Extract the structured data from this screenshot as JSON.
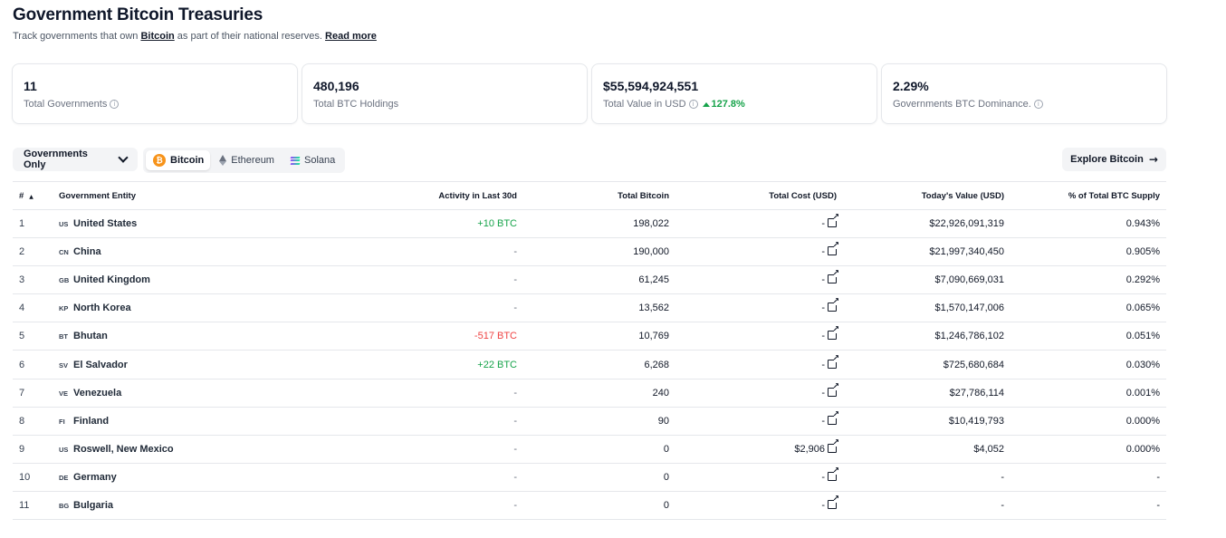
{
  "page": {
    "title": "Government Bitcoin Treasuries",
    "subtitle_prefix": "Track governments that own ",
    "subtitle_link": "Bitcoin",
    "subtitle_suffix": " as part of their national reserves.",
    "read_more": "Read more"
  },
  "stats": [
    {
      "value": "11",
      "label": "Total Governments"
    },
    {
      "value": "480,196",
      "label": "Total BTC Holdings"
    },
    {
      "value": "$55,594,924,551",
      "label": "Total Value in USD",
      "change": "127.8%"
    },
    {
      "value": "2.29%",
      "label": "Governments BTC Dominance."
    }
  ],
  "toolbar": {
    "filter_label": "Governments Only",
    "assets": [
      {
        "label": "Bitcoin",
        "icon": "bitcoin-icon",
        "active": true
      },
      {
        "label": "Ethereum",
        "icon": "ethereum-icon",
        "active": false
      },
      {
        "label": "Solana",
        "icon": "solana-icon",
        "active": false
      }
    ],
    "explore_label": "Explore Bitcoin"
  },
  "table": {
    "headers": [
      "#",
      "Government Entity",
      "Activity in Last 30d",
      "Total Bitcoin",
      "Total Cost (USD)",
      "Today's Value (USD)",
      "% of Total BTC Supply"
    ],
    "rows": [
      {
        "rank": "1",
        "code": "US",
        "entity": "United States",
        "activity": "+10 BTC",
        "activity_type": "pos",
        "total": "198,022",
        "cost": "-",
        "value": "$22,926,091,319",
        "pct": "0.943%"
      },
      {
        "rank": "2",
        "code": "CN",
        "entity": "China",
        "activity": "-",
        "activity_type": "none",
        "total": "190,000",
        "cost": "-",
        "value": "$21,997,340,450",
        "pct": "0.905%"
      },
      {
        "rank": "3",
        "code": "GB",
        "entity": "United Kingdom",
        "activity": "-",
        "activity_type": "none",
        "total": "61,245",
        "cost": "-",
        "value": "$7,090,669,031",
        "pct": "0.292%"
      },
      {
        "rank": "4",
        "code": "KP",
        "entity": "North Korea",
        "activity": "-",
        "activity_type": "none",
        "total": "13,562",
        "cost": "-",
        "value": "$1,570,147,006",
        "pct": "0.065%"
      },
      {
        "rank": "5",
        "code": "BT",
        "entity": "Bhutan",
        "activity": "-517 BTC",
        "activity_type": "neg",
        "total": "10,769",
        "cost": "-",
        "value": "$1,246,786,102",
        "pct": "0.051%"
      },
      {
        "rank": "6",
        "code": "SV",
        "entity": "El Salvador",
        "activity": "+22 BTC",
        "activity_type": "pos",
        "total": "6,268",
        "cost": "-",
        "value": "$725,680,684",
        "pct": "0.030%"
      },
      {
        "rank": "7",
        "code": "VE",
        "entity": "Venezuela",
        "activity": "-",
        "activity_type": "none",
        "total": "240",
        "cost": "-",
        "value": "$27,786,114",
        "pct": "0.001%"
      },
      {
        "rank": "8",
        "code": "FI",
        "entity": "Finland",
        "activity": "-",
        "activity_type": "none",
        "total": "90",
        "cost": "-",
        "value": "$10,419,793",
        "pct": "0.000%"
      },
      {
        "rank": "9",
        "code": "US",
        "entity": "Roswell, New Mexico",
        "activity": "-",
        "activity_type": "none",
        "total": "0",
        "cost": "$2,906",
        "value": "$4,052",
        "pct": "0.000%"
      },
      {
        "rank": "10",
        "code": "DE",
        "entity": "Germany",
        "activity": "-",
        "activity_type": "none",
        "total": "0",
        "cost": "-",
        "value": "-",
        "pct": "-"
      },
      {
        "rank": "11",
        "code": "BG",
        "entity": "Bulgaria",
        "activity": "-",
        "activity_type": "none",
        "total": "0",
        "cost": "-",
        "value": "-",
        "pct": "-"
      }
    ]
  },
  "colors": {
    "positive": "#16a34a",
    "negative": "#ef4444",
    "bitcoin": "#f7931a"
  }
}
